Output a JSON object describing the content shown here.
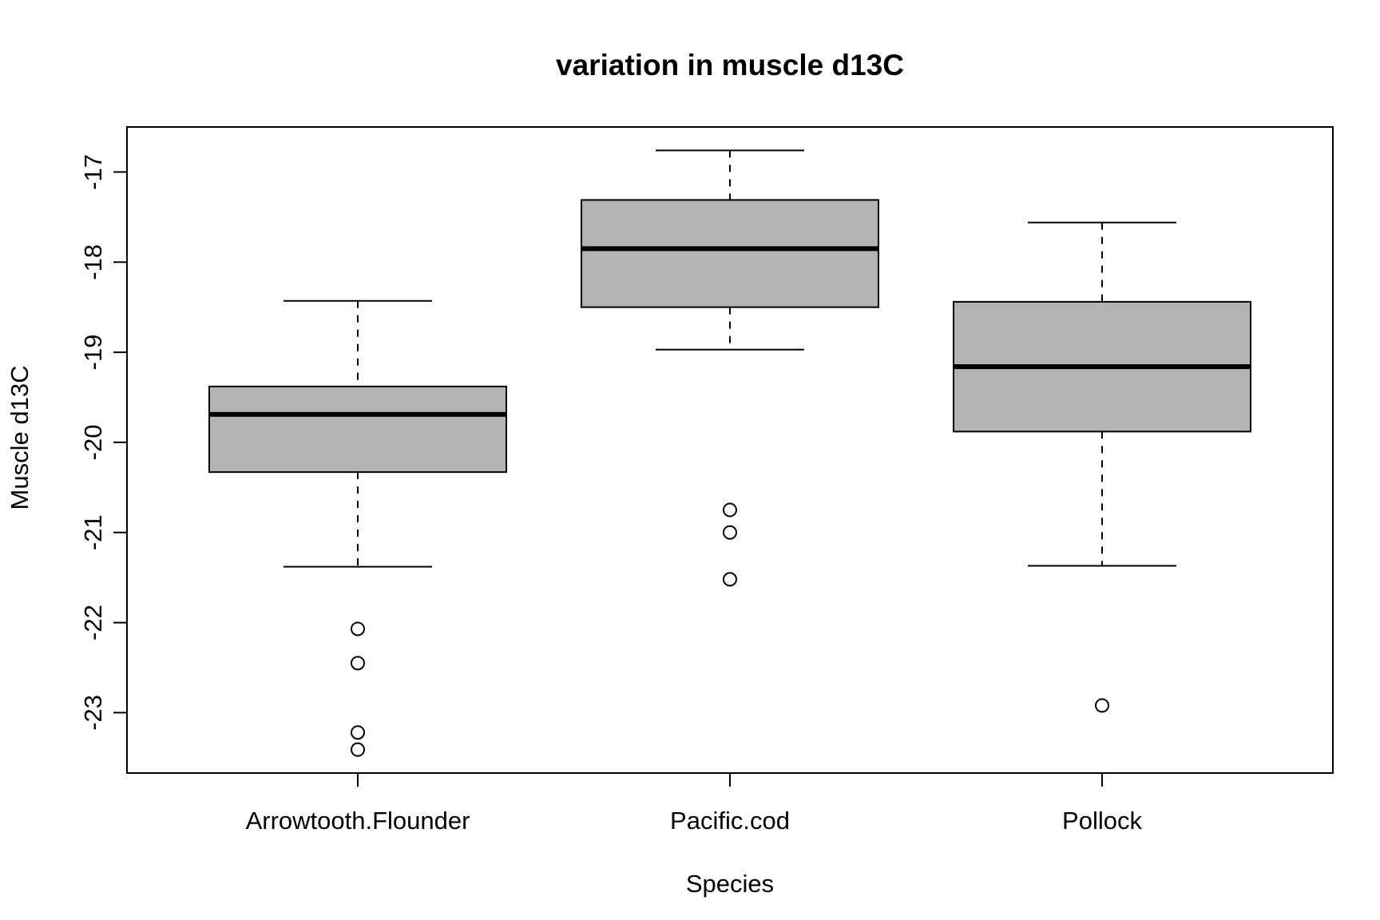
{
  "chart_data": {
    "type": "boxplot",
    "title": "variation in muscle d13C",
    "xlabel": "Species",
    "ylabel": "Muscle d13C",
    "categories": [
      "Arrowtooth.Flounder",
      "Pacific.cod",
      "Pollock"
    ],
    "yticks": [
      -17,
      -18,
      -19,
      -20,
      -21,
      -22,
      -23
    ],
    "ylim": [
      -23.67,
      -16.5
    ],
    "grid": false,
    "box_fill": "#b3b3b3",
    "boxes": [
      {
        "category": "Arrowtooth.Flounder",
        "whisker_low": -21.38,
        "q1": -20.33,
        "median": -19.69,
        "q3": -19.38,
        "whisker_high": -18.43,
        "outliers": [
          -22.07,
          -22.45,
          -23.22,
          -23.41
        ]
      },
      {
        "category": "Pacific.cod",
        "whisker_low": -18.97,
        "q1": -18.5,
        "median": -17.85,
        "q3": -17.31,
        "whisker_high": -16.76,
        "outliers": [
          -20.75,
          -21.0,
          -21.52
        ]
      },
      {
        "category": "Pollock",
        "whisker_low": -21.37,
        "q1": -19.88,
        "median": -19.16,
        "q3": -18.44,
        "whisker_high": -17.56,
        "outliers": [
          -22.92
        ]
      }
    ]
  }
}
